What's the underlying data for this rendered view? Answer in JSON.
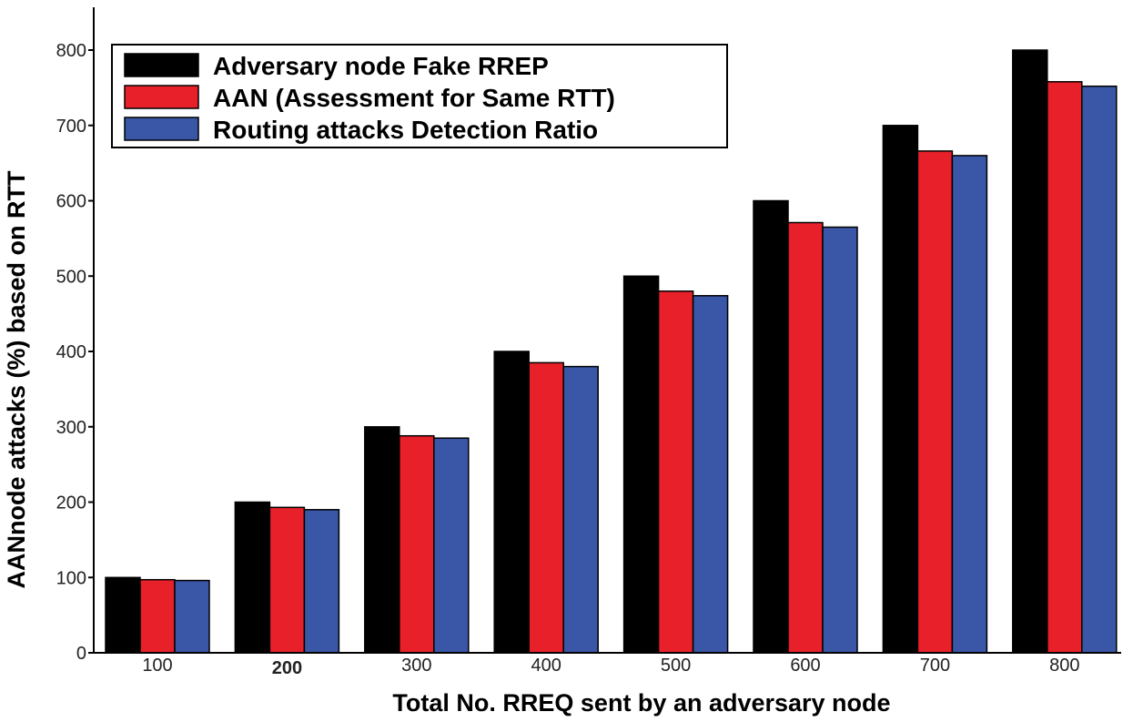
{
  "chart_data": {
    "type": "bar",
    "xlabel": "Total No. RREQ sent by an adversary node",
    "ylabel": "AANnode attacks (%) based on RTT",
    "categories": [
      "100",
      "200",
      "300",
      "400",
      "500",
      "600",
      "700",
      "800"
    ],
    "ylim": [
      0,
      800
    ],
    "yticks": [
      "0",
      "100",
      "200",
      "300",
      "400",
      "500",
      "600",
      "700",
      "800"
    ],
    "legend_position": "top-left",
    "grid": false,
    "series": [
      {
        "name": "Adversary node Fake RREP",
        "color": "#000000",
        "values": [
          100,
          200,
          300,
          400,
          500,
          600,
          700,
          800
        ]
      },
      {
        "name": "AAN (Assessment for Same RTT)",
        "color": "#e8202a",
        "values": [
          97,
          193,
          288,
          385,
          480,
          571,
          666,
          758
        ]
      },
      {
        "name": "Routing attacks Detection Ratio",
        "color": "#3a56a6",
        "values": [
          96,
          190,
          285,
          380,
          474,
          565,
          660,
          752
        ]
      }
    ]
  }
}
